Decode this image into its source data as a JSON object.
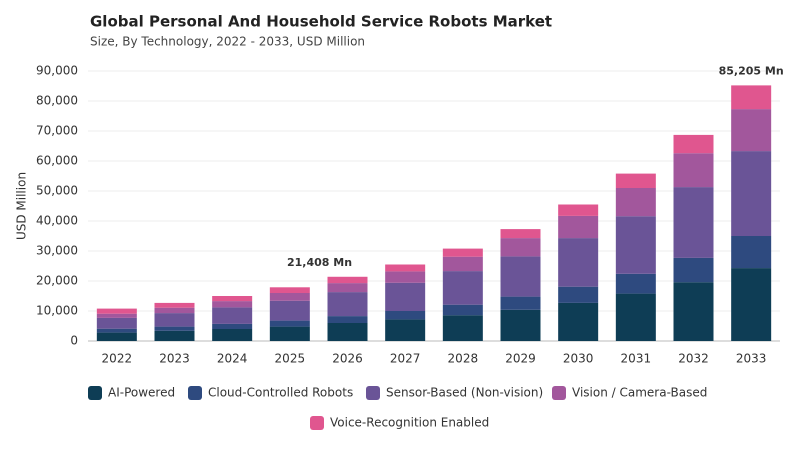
{
  "chart_data": {
    "type": "stacked_bar",
    "title": "Global Personal And Household Service Robots Market",
    "subtitle": "Size, By Technology, 2022 - 2033, USD Million",
    "y_label": "USD Million",
    "categories": [
      "2022",
      "2023",
      "2024",
      "2025",
      "2026",
      "2027",
      "2028",
      "2029",
      "2030",
      "2031",
      "2032",
      "2033"
    ],
    "series": [
      {
        "name": "AI-Powered",
        "color": "#0e3d55",
        "values": [
          2800,
          3400,
          4000,
          4800,
          6000,
          7200,
          8600,
          10400,
          12700,
          15800,
          19600,
          24300
        ]
      },
      {
        "name": "Cloud-Controlled Robots",
        "color": "#2e4a7f",
        "values": [
          1300,
          1400,
          1700,
          2000,
          2300,
          2800,
          3500,
          4400,
          5400,
          6600,
          8100,
          10700
        ]
      },
      {
        "name": "Sensor-Based (Non-vision)",
        "color": "#6a5497",
        "values": [
          3600,
          4500,
          5500,
          6600,
          8000,
          9400,
          11200,
          13400,
          16200,
          19200,
          23600,
          28300
        ]
      },
      {
        "name": "Vision / Camera-Based",
        "color": "#a2579c",
        "values": [
          1400,
          1800,
          2100,
          2600,
          3000,
          3800,
          4800,
          6100,
          7400,
          9400,
          11300,
          14000
        ]
      },
      {
        "name": "Voice-Recognition Enabled",
        "color": "#e0568f",
        "values": [
          1700,
          1600,
          1700,
          1900,
          2108,
          2300,
          2700,
          3000,
          3800,
          4800,
          6100,
          7905
        ]
      }
    ],
    "annotations": [
      {
        "text": "21,408 Mn",
        "x": "2026"
      },
      {
        "text": "85,205 Mn",
        "x": "2033"
      }
    ],
    "ylim": [
      0,
      90000
    ],
    "yticks": [
      0,
      {
        "value": 10000,
        "label": "10,000"
      },
      {
        "value": 20000,
        "label": "20,000"
      },
      {
        "value": 30000,
        "label": "30,000"
      },
      {
        "value": 40000,
        "label": "40,000"
      },
      {
        "value": 50000,
        "label": "50,000"
      },
      {
        "value": 60000,
        "label": "60,000"
      },
      {
        "value": 70000,
        "label": "70,000"
      },
      {
        "value": 80000,
        "label": "80,000"
      },
      {
        "value": 90000,
        "label": "90,000"
      }
    ],
    "grid": true
  }
}
